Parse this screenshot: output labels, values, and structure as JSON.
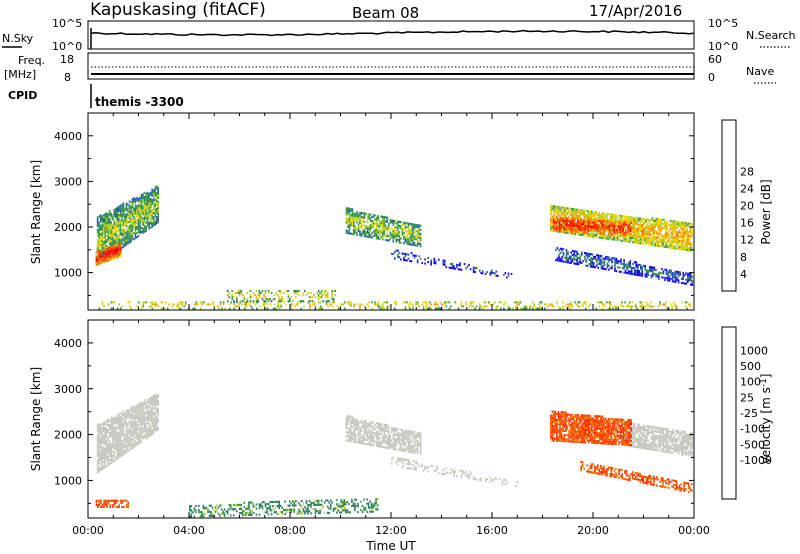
{
  "header": {
    "station": "Kapuskasing (fitACF)",
    "beam": "Beam 08",
    "date": "17/Apr/2016"
  },
  "params": {
    "nsky_label": "N.Sky",
    "nsearch_label": "N.Search",
    "freq_label_1": "Freq.",
    "freq_label_2": "[MHz]",
    "nave_label": "Nave",
    "cpid_label": "CPID",
    "cpid_text": "themis -3300",
    "noise_ticks": [
      "10^5",
      "10^0"
    ],
    "freq_ticks_left": [
      "18",
      "8"
    ],
    "freq_ticks_right": [
      "60",
      "0"
    ]
  },
  "chart_data": [
    {
      "type": "heatmap",
      "name": "power",
      "ylabel": "Slant Range [km]",
      "xlabel": "",
      "colorbar_label": "Power [dB]",
      "x_ticks": [
        "00:00",
        "04:00",
        "08:00",
        "12:00",
        "16:00",
        "20:00",
        "00:00"
      ],
      "y_ticks": [
        1000,
        2000,
        3000,
        4000
      ],
      "ylim": [
        180,
        4500
      ],
      "colorbar_ticks": [
        4,
        8,
        12,
        16,
        20,
        24,
        28
      ],
      "colors": [
        "#1a00ff",
        "#1f4fc8",
        "#2f7d5e",
        "#3aa04a",
        "#b8d020",
        "#f0d000",
        "#f0a000",
        "#f07000",
        "#ff3000",
        "#ff0000"
      ],
      "bands": [
        {
          "t0": 0.35,
          "t1": 2.8,
          "r0": 1150,
          "r1": 2200,
          "r0e": 2100,
          "r1e": 2900,
          "v": 14,
          "density": 0.85
        },
        {
          "t0": 0.3,
          "t1": 1.3,
          "r0": 1150,
          "r1": 1450,
          "r0e": 1350,
          "r1e": 1650,
          "v": 28,
          "density": 0.9
        },
        {
          "t0": 10.2,
          "t1": 13.2,
          "r0": 1850,
          "r1": 2400,
          "r0e": 1550,
          "r1e": 2000,
          "v": 14,
          "density": 0.75
        },
        {
          "t0": 18.3,
          "t1": 24,
          "r0": 1900,
          "r1": 2450,
          "r0e": 1450,
          "r1e": 2050,
          "v": 20,
          "density": 0.85
        },
        {
          "t0": 18.4,
          "t1": 21.5,
          "r0": 1900,
          "r1": 2200,
          "r0e": 1800,
          "r1e": 2100,
          "v": 28,
          "density": 0.75
        },
        {
          "t0": 18.5,
          "t1": 24,
          "r0": 1250,
          "r1": 1550,
          "r0e": 700,
          "r1e": 950,
          "v": 8,
          "density": 0.6
        },
        {
          "t0": 12,
          "t1": 16.8,
          "r0": 1300,
          "r1": 1500,
          "r0e": 850,
          "r1e": 950,
          "v": 6,
          "density": 0.3
        },
        {
          "t0": 0.3,
          "t1": 24,
          "r0": 190,
          "r1": 350,
          "r0e": 190,
          "r1e": 350,
          "v": 18,
          "density": 0.3
        },
        {
          "t0": 5.5,
          "t1": 9.8,
          "r0": 350,
          "r1": 600,
          "r0e": 350,
          "r1e": 600,
          "v": 16,
          "density": 0.35
        }
      ]
    },
    {
      "type": "heatmap",
      "name": "velocity",
      "ylabel": "Slant Range [km]",
      "xlabel": "Time UT",
      "colorbar_label": "Velocity [m s-1]",
      "x_ticks": [
        "00:00",
        "04:00",
        "08:00",
        "12:00",
        "16:00",
        "20:00",
        "00:00"
      ],
      "y_ticks": [
        1000,
        2000,
        3000,
        4000
      ],
      "ylim": [
        180,
        4500
      ],
      "colorbar_ticks": [
        1000,
        500,
        100,
        25,
        -25,
        -100,
        -500,
        -1000
      ],
      "colors": [
        "#1a00ff",
        "#1f4fc8",
        "#2f7d5e",
        "#3aa04a",
        "#b8d020",
        "#c8c8c0",
        "#f0c000",
        "#f0a000",
        "#f07000",
        "#ff3000",
        "#ff0000"
      ],
      "bands": [
        {
          "t0": 0.35,
          "t1": 2.8,
          "r0": 1150,
          "r1": 2200,
          "r0e": 2100,
          "r1e": 2900,
          "v": 0,
          "density": 0.85
        },
        {
          "t0": 10.2,
          "t1": 13.2,
          "r0": 1850,
          "r1": 2400,
          "r0e": 1550,
          "r1e": 2000,
          "v": 0,
          "density": 0.75
        },
        {
          "t0": 21.2,
          "t1": 24,
          "r0": 1750,
          "r1": 2250,
          "r0e": 1500,
          "r1e": 2000,
          "v": 0,
          "density": 0.8
        },
        {
          "t0": 18.3,
          "t1": 21.5,
          "r0": 1850,
          "r1": 2500,
          "r0e": 1750,
          "r1e": 2300,
          "v": -300,
          "density": 0.85
        },
        {
          "t0": 19.5,
          "t1": 24,
          "r0": 1200,
          "r1": 1400,
          "r0e": 700,
          "r1e": 900,
          "v": -300,
          "density": 0.55
        },
        {
          "t0": 0.3,
          "t1": 1.6,
          "r0": 400,
          "r1": 550,
          "r0e": 400,
          "r1e": 550,
          "v": -300,
          "density": 0.6
        },
        {
          "t0": 4,
          "t1": 11.5,
          "r0": 190,
          "r1": 450,
          "r0e": 300,
          "r1e": 600,
          "v": 150,
          "density": 0.4
        },
        {
          "t0": 12,
          "t1": 17,
          "r0": 1300,
          "r1": 1500,
          "r0e": 850,
          "r1e": 950,
          "v": 0,
          "density": 0.3
        }
      ]
    }
  ]
}
